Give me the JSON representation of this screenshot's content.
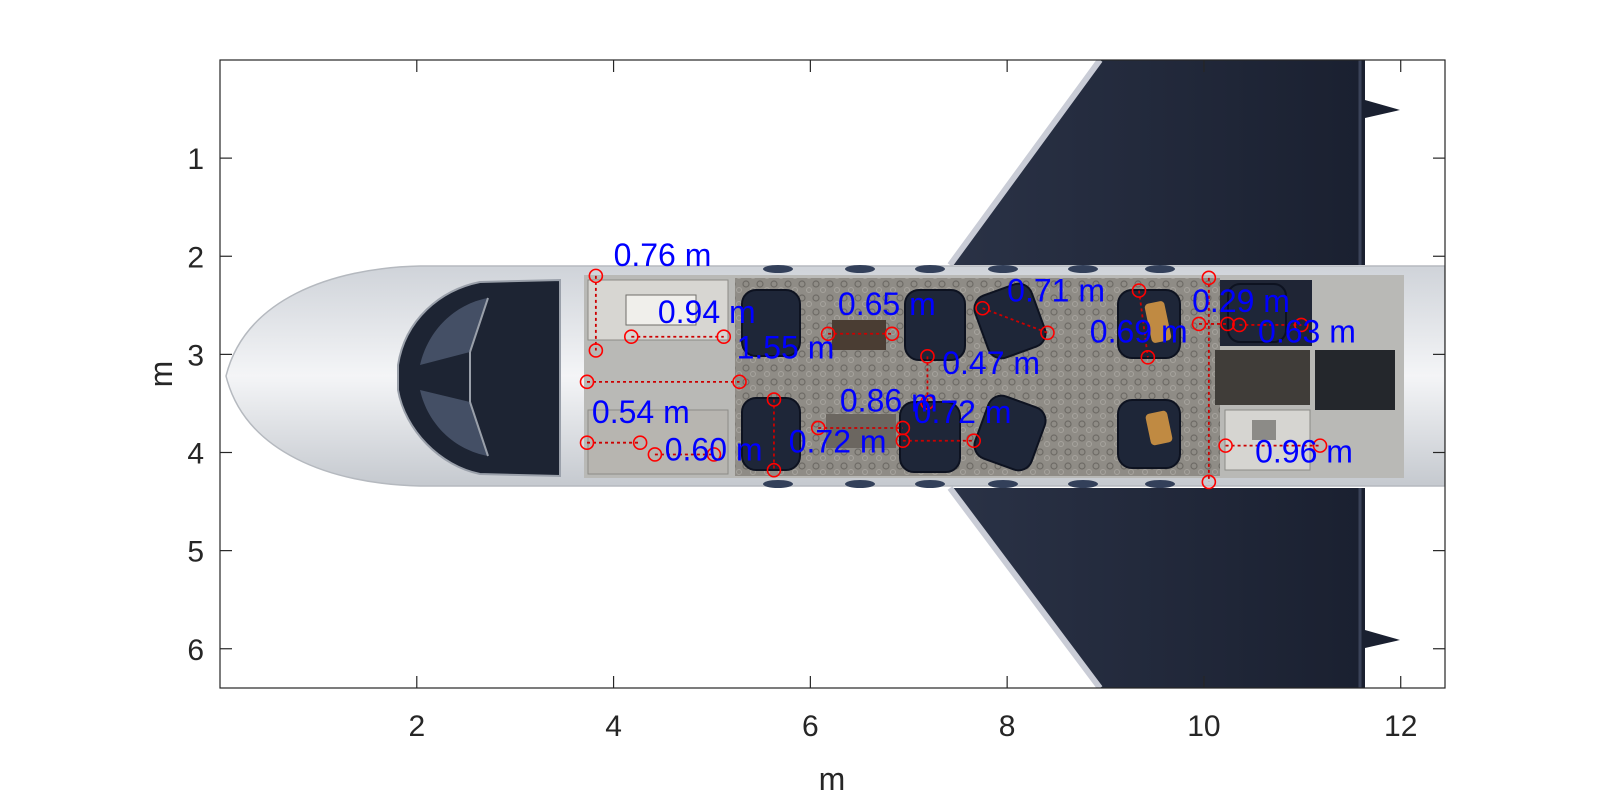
{
  "chart_data": {
    "type": "scatter",
    "title": "",
    "xlabel": "m",
    "ylabel": "m",
    "xlim": [
      0,
      12.45
    ],
    "ylim": [
      0,
      6.4
    ],
    "y_reversed": true,
    "xticks": [
      2,
      4,
      6,
      8,
      10,
      12
    ],
    "yticks": [
      1,
      2,
      3,
      4,
      5,
      6
    ],
    "grid": false,
    "background_image": "aircraft-cabin-top-view",
    "colors": {
      "marker": "#ff0000",
      "line": "#cc0000",
      "label": "#0000ff",
      "axis": "#262626",
      "fuselage": "#e9ebee",
      "wing": "#1f2637",
      "cabin_floor": "#8c8a85"
    },
    "measurements": [
      {
        "label": "0.76 m",
        "p1": [
          3.82,
          2.2
        ],
        "p2": [
          3.82,
          2.96
        ],
        "label_at": [
          4.0,
          2.1
        ]
      },
      {
        "label": "0.94 m",
        "p1": [
          4.18,
          2.82
        ],
        "p2": [
          5.12,
          2.82
        ],
        "label_at": [
          4.45,
          2.68
        ]
      },
      {
        "label": "1.55 m",
        "p1": [
          3.73,
          3.28
        ],
        "p2": [
          5.28,
          3.28
        ],
        "label_at": [
          5.25,
          3.04
        ]
      },
      {
        "label": "0.54 m",
        "p1": [
          3.73,
          3.9
        ],
        "p2": [
          4.27,
          3.9
        ],
        "label_at": [
          3.78,
          3.7
        ]
      },
      {
        "label": "0.60 m",
        "p1": [
          4.42,
          4.02
        ],
        "p2": [
          5.02,
          4.02
        ],
        "label_at": [
          4.52,
          4.08
        ]
      },
      {
        "label": "0.72 m",
        "p1": [
          5.63,
          3.46
        ],
        "p2": [
          5.63,
          4.18
        ],
        "label_at": [
          5.78,
          4.0
        ]
      },
      {
        "label": "0.65 m",
        "p1": [
          6.18,
          2.79
        ],
        "p2": [
          6.83,
          2.79
        ],
        "label_at": [
          6.28,
          2.6
        ]
      },
      {
        "label": "0.86 m",
        "p1": [
          6.08,
          3.75
        ],
        "p2": [
          6.94,
          3.75
        ],
        "label_at": [
          6.3,
          3.58
        ]
      },
      {
        "label": "0.47 m",
        "p1": [
          7.19,
          3.02
        ],
        "p2": [
          7.19,
          3.49
        ],
        "label_at": [
          7.34,
          3.2
        ]
      },
      {
        "label": "0.72 m",
        "p1": [
          6.94,
          3.88
        ],
        "p2": [
          7.66,
          3.88
        ],
        "label_at": [
          7.05,
          3.7
        ]
      },
      {
        "label": "0.71 m",
        "p1": [
          7.75,
          2.53
        ],
        "p2": [
          8.41,
          2.78
        ],
        "label_at": [
          8.0,
          2.46
        ]
      },
      {
        "label": "0.69 m",
        "p1": [
          9.34,
          2.35
        ],
        "p2": [
          9.43,
          3.03
        ],
        "label_at": [
          8.84,
          2.88
        ]
      },
      {
        "label": "0.29 m",
        "p1": [
          9.95,
          2.69
        ],
        "p2": [
          10.24,
          2.69
        ],
        "label_at": [
          9.88,
          2.57
        ]
      },
      {
        "label": "0.63 m",
        "p1": [
          10.36,
          2.7
        ],
        "p2": [
          10.99,
          2.7
        ],
        "label_at": [
          10.55,
          2.88
        ]
      },
      {
        "label": "0.96 m",
        "p1": [
          10.22,
          3.93
        ],
        "p2": [
          11.18,
          3.93
        ],
        "label_at": [
          10.52,
          4.1
        ]
      },
      {
        "label": "",
        "p1": [
          10.05,
          2.22
        ],
        "p2": [
          10.05,
          4.3
        ],
        "label_at": [
          10.05,
          2.22
        ]
      }
    ]
  }
}
